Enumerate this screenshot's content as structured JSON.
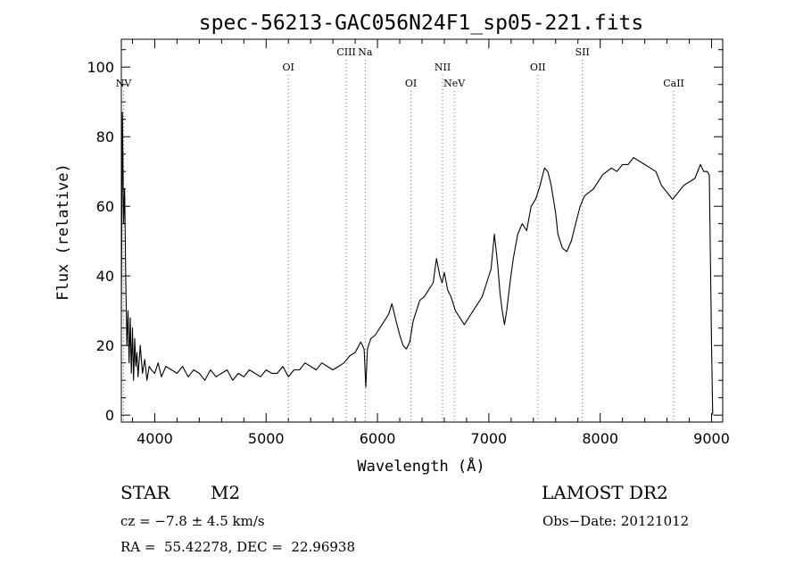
{
  "chart_data": {
    "type": "line",
    "title": "spec-56213-GAC056N24F1_sp05-221.fits",
    "xlabel": "Wavelength (Å)",
    "ylabel": "Flux (relative)",
    "xlim": [
      3700,
      9100
    ],
    "ylim": [
      -2,
      108
    ],
    "xticks": [
      4000,
      5000,
      6000,
      7000,
      8000,
      9000
    ],
    "yticks": [
      0,
      20,
      40,
      60,
      80,
      100
    ],
    "grid": false,
    "line_color": "#000000",
    "lines": [
      {
        "label": "NV",
        "wavelength": 3720,
        "row": 3
      },
      {
        "label": "OI",
        "wavelength": 5200,
        "row": 2
      },
      {
        "label": "CIII",
        "wavelength": 5720,
        "row": 1
      },
      {
        "label": "Na",
        "wavelength": 5890,
        "row": 1
      },
      {
        "label": "OI",
        "wavelength": 6300,
        "row": 3
      },
      {
        "label": "NII",
        "wavelength": 6585,
        "row": 2
      },
      {
        "label": "NeV",
        "wavelength": 6690,
        "row": 3
      },
      {
        "label": "OII",
        "wavelength": 7440,
        "row": 2
      },
      {
        "label": "SII",
        "wavelength": 7840,
        "row": 1
      },
      {
        "label": "CaII",
        "wavelength": 8660,
        "row": 3
      }
    ],
    "series": [
      {
        "x": [
          3700,
          3710,
          3720,
          3730,
          3740,
          3750,
          3760,
          3770,
          3780,
          3790,
          3800,
          3810,
          3820,
          3830,
          3840,
          3850,
          3870,
          3890,
          3910,
          3930,
          3950,
          3970,
          4000,
          4030,
          4060,
          4100,
          4150,
          4200,
          4250,
          4300,
          4350,
          4400,
          4450,
          4500,
          4550,
          4600,
          4650,
          4700,
          4750,
          4800,
          4850,
          4900,
          4950,
          5000,
          5050,
          5100,
          5150,
          5200,
          5250,
          5300,
          5350,
          5400,
          5450,
          5500,
          5550,
          5600,
          5650,
          5700,
          5750,
          5800,
          5850,
          5880,
          5895,
          5910,
          5940,
          5980,
          6020,
          6060,
          6100,
          6130,
          6160,
          6200,
          6230,
          6260,
          6290,
          6320,
          6350,
          6380,
          6420,
          6460,
          6500,
          6530,
          6560,
          6580,
          6600,
          6630,
          6660,
          6700,
          6740,
          6780,
          6820,
          6860,
          6900,
          6940,
          6980,
          7020,
          7050,
          7080,
          7100,
          7120,
          7140,
          7160,
          7190,
          7220,
          7260,
          7300,
          7340,
          7380,
          7420,
          7460,
          7500,
          7530,
          7560,
          7580,
          7600,
          7620,
          7660,
          7700,
          7740,
          7780,
          7820,
          7860,
          7900,
          7940,
          7980,
          8020,
          8060,
          8100,
          8150,
          8200,
          8250,
          8300,
          8350,
          8400,
          8450,
          8500,
          8550,
          8600,
          8650,
          8700,
          8750,
          8800,
          8850,
          8900,
          8930,
          8960,
          8980,
          9000,
          9010
        ],
        "y": [
          30,
          87,
          55,
          65,
          38,
          20,
          30,
          15,
          28,
          12,
          25,
          10,
          22,
          14,
          18,
          11,
          20,
          12,
          16,
          10,
          14,
          13,
          12,
          15,
          11,
          14,
          13,
          12,
          14,
          11,
          13,
          12,
          10,
          13,
          11,
          12,
          13,
          10,
          12,
          11,
          13,
          12,
          11,
          13,
          12,
          12,
          14,
          11,
          13,
          13,
          15,
          14,
          13,
          15,
          14,
          13,
          14,
          15,
          17,
          18,
          21,
          19,
          8,
          19,
          22,
          23,
          25,
          27,
          29,
          32,
          28,
          23,
          20,
          19,
          21,
          27,
          30,
          33,
          34,
          36,
          38,
          45,
          40,
          38,
          41,
          36,
          34,
          30,
          28,
          26,
          28,
          30,
          32,
          34,
          38,
          42,
          52,
          43,
          35,
          30,
          26,
          30,
          38,
          45,
          52,
          55,
          53,
          60,
          62,
          66,
          71,
          70,
          66,
          62,
          58,
          52,
          48,
          47,
          50,
          55,
          60,
          63,
          64,
          65,
          67,
          69,
          70,
          71,
          70,
          72,
          72,
          74,
          73,
          72,
          71,
          70,
          66,
          64,
          62,
          64,
          66,
          67,
          68,
          72,
          70,
          70,
          69,
          20,
          0
        ]
      }
    ]
  },
  "info": {
    "object_class": "STAR",
    "subclass": "M2",
    "survey": "LAMOST DR2",
    "redshift": "cz = −7.8 ± 4.5 km/s",
    "obs_date": "Obs−Date: 20121012",
    "coords": "RA =  55.42278, DEC =  22.96938"
  }
}
